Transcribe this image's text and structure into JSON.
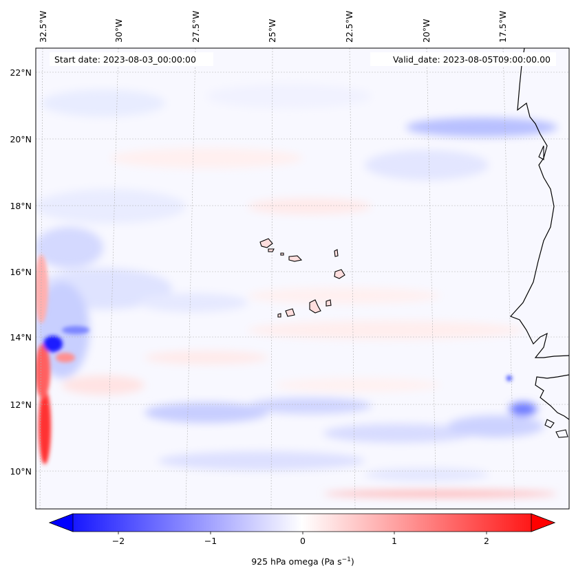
{
  "map": {
    "start_date_label": "Start date: 2023-08-03_00:00:00",
    "valid_date_label": "Valid_date: 2023-08-05T09:00:00.00",
    "lon_labels": [
      "32.5°W",
      "30°W",
      "27.5°W",
      "25°W",
      "22.5°W",
      "20°W",
      "17.5°W"
    ],
    "lat_labels": [
      "22°N",
      "20°N",
      "18°N",
      "16°N",
      "14°N",
      "12°N",
      "10°N"
    ],
    "extent": {
      "lon_min": -32.5,
      "lon_max": -15.3,
      "lat_min": 8.9,
      "lat_max": 22.8
    },
    "colors": {
      "negative": "#0000ff",
      "positive": "#ff0000",
      "neutral": "#ffffff",
      "coast": "#000000",
      "grid": "#b0b0b0"
    }
  },
  "colorbar": {
    "label_text": "925 hPa omega (Pa s",
    "label_exp": "−1",
    "label_close": ")",
    "ticks": [
      "−2",
      "−1",
      "0",
      "1",
      "2"
    ],
    "min": -2.5,
    "max": 2.5
  }
}
